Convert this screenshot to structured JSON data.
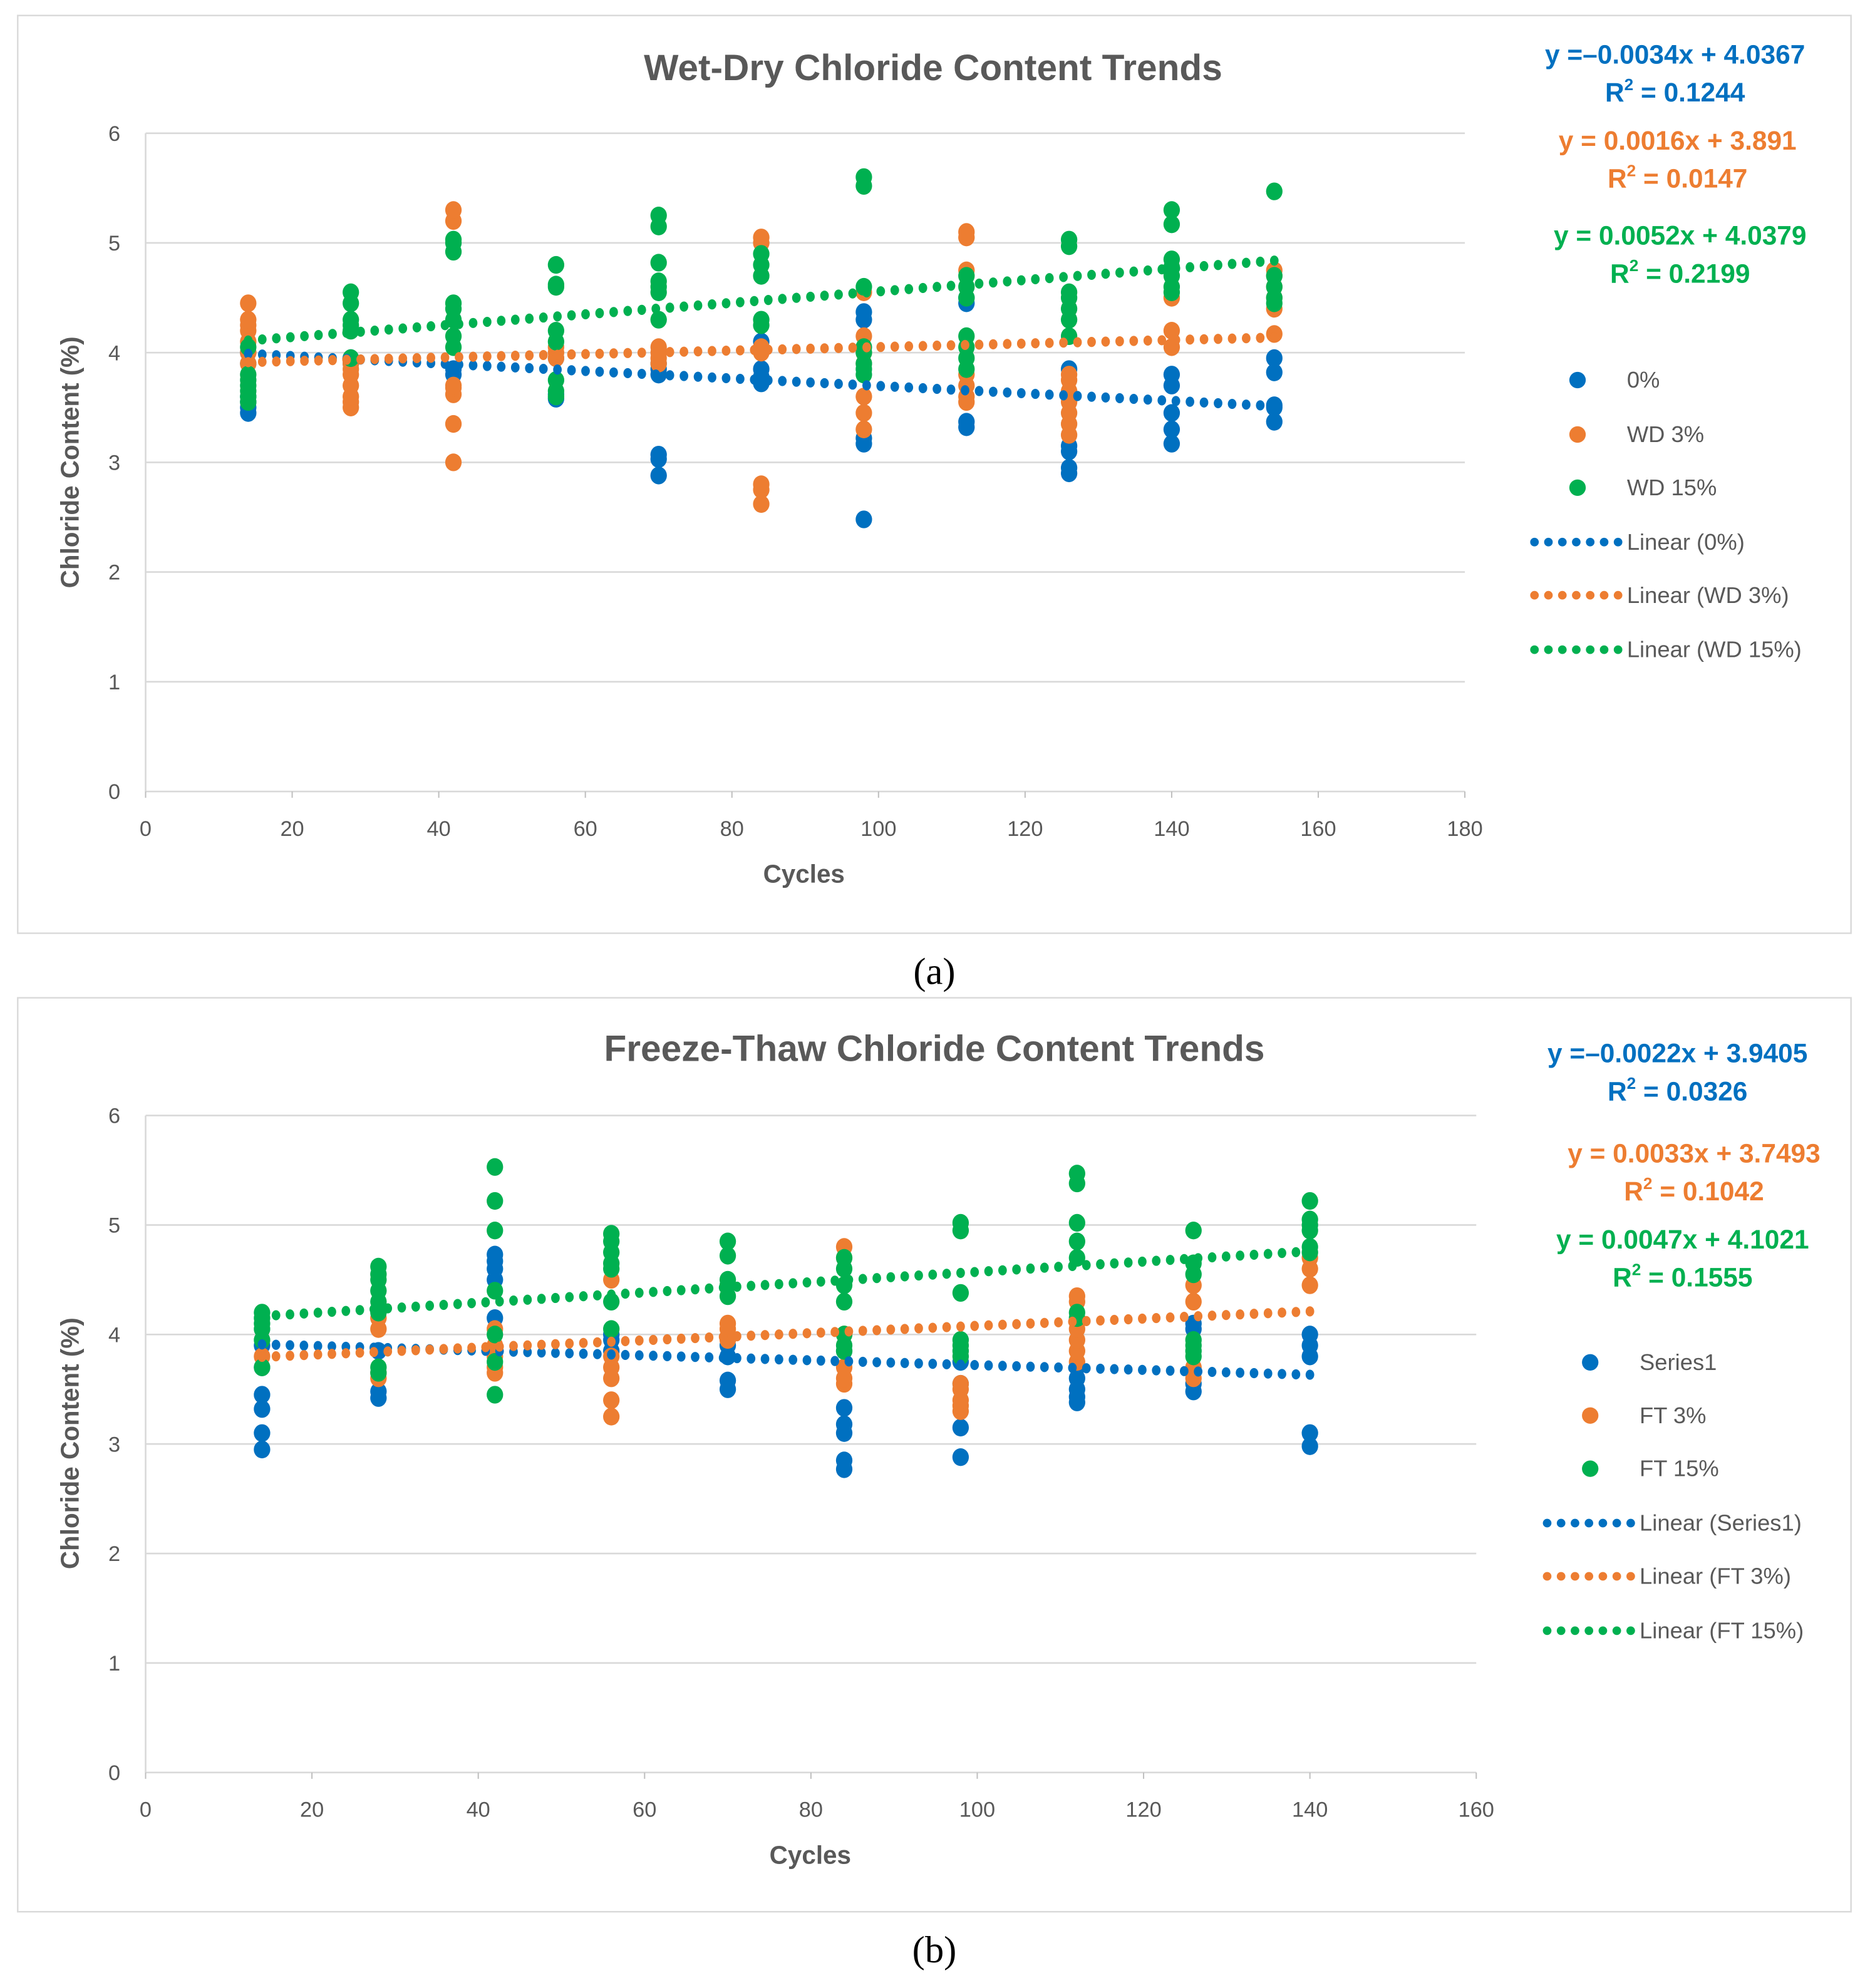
{
  "colors": {
    "blue": "#0070C0",
    "orange": "#ED7D31",
    "green": "#00B050"
  },
  "chart_data": [
    {
      "type": "scatter",
      "caption": "(a)",
      "title": "Wet-Dry Chloride Content Trends",
      "xlabel": "Cycles",
      "ylabel": "Chloride Content (%)",
      "xlim": [
        0,
        180
      ],
      "ylim": [
        0,
        6
      ],
      "xticks": [
        0,
        20,
        40,
        60,
        80,
        100,
        120,
        140,
        160,
        180
      ],
      "yticks": [
        0,
        1,
        2,
        3,
        4,
        5,
        6
      ],
      "grid": true,
      "legend_position": "right",
      "series": [
        {
          "name": "0%",
          "color": "#0070C0",
          "points": {
            "14": [
              3.45,
              3.5,
              3.55,
              3.6,
              3.9,
              4.0
            ],
            "28": [
              3.9,
              3.95
            ],
            "42": [
              3.8,
              3.85
            ],
            "56": [
              3.58,
              3.62,
              3.95
            ],
            "70": [
              2.88,
              3.03,
              3.07,
              3.8,
              3.85,
              3.9
            ],
            "84": [
              3.72,
              3.78,
              3.85,
              4.1
            ],
            "98": [
              2.48,
              3.17,
              3.22,
              4.3,
              4.37
            ],
            "112": [
              3.32,
              3.37,
              4.45,
              4.5
            ],
            "126": [
              2.9,
              2.95,
              3.1,
              3.15,
              3.85
            ],
            "140": [
              3.17,
              3.3,
              3.45,
              3.7,
              3.8
            ],
            "154": [
              3.37,
              3.5,
              3.52,
              3.82,
              3.95
            ]
          }
        },
        {
          "name": "WD 3%",
          "color": "#ED7D31",
          "points": {
            "14": [
              3.9,
              4.0,
              4.1,
              4.2,
              4.25,
              4.3,
              4.45
            ],
            "28": [
              3.5,
              3.55,
              3.6,
              3.7,
              3.8,
              3.85,
              3.9
            ],
            "42": [
              3.0,
              3.35,
              3.62,
              3.68,
              3.7,
              5.2,
              5.3
            ],
            "56": [
              3.95,
              4.0,
              4.05
            ],
            "70": [
              3.9,
              3.95,
              4.0,
              4.05
            ],
            "84": [
              2.62,
              2.75,
              2.8,
              4.0,
              4.05,
              5.0,
              5.05
            ],
            "98": [
              3.3,
              3.45,
              3.6,
              3.9,
              4.0,
              4.15,
              4.55
            ],
            "112": [
              3.55,
              3.6,
              3.7,
              3.8,
              4.75,
              5.05,
              5.1
            ],
            "126": [
              3.25,
              3.35,
              3.45,
              3.55,
              3.65,
              3.75,
              3.8
            ],
            "140": [
              4.05,
              4.2,
              4.5
            ],
            "154": [
              4.17,
              4.4,
              4.5,
              4.6,
              4.7,
              4.75
            ]
          }
        },
        {
          "name": "WD 15%",
          "color": "#00B050",
          "points": {
            "14": [
              3.55,
              3.6,
              3.65,
              3.7,
              3.75,
              3.8,
              4.05
            ],
            "28": [
              3.95,
              4.2,
              4.25,
              4.3,
              4.45,
              4.55
            ],
            "42": [
              4.05,
              4.15,
              4.3,
              4.4,
              4.45,
              4.92,
              5.0,
              5.03
            ],
            "56": [
              3.6,
              3.65,
              3.75,
              4.1,
              4.2,
              4.6,
              4.62,
              4.8
            ],
            "70": [
              4.3,
              4.55,
              4.6,
              4.65,
              4.82,
              5.15,
              5.25
            ],
            "84": [
              4.25,
              4.3,
              4.7,
              4.8,
              4.9
            ],
            "98": [
              3.8,
              3.85,
              3.9,
              4.0,
              4.05,
              4.6,
              5.52,
              5.6
            ],
            "112": [
              3.85,
              3.95,
              4.05,
              4.15,
              4.5,
              4.6,
              4.7
            ],
            "126": [
              4.15,
              4.3,
              4.4,
              4.5,
              4.55,
              4.97,
              5.03
            ],
            "140": [
              4.55,
              4.6,
              4.7,
              4.78,
              4.85,
              5.17,
              5.3
            ],
            "154": [
              4.45,
              4.5,
              4.6,
              4.7,
              5.47
            ]
          }
        }
      ],
      "trendlines": [
        {
          "name": "Linear (0%)",
          "color": "#0070C0",
          "slope": -0.0034,
          "intercept": 4.0367,
          "x_range": [
            14,
            154
          ],
          "equation": "y =–0.0034x + 4.0367",
          "r2_label": "R",
          "r2_value": " = 0.1244"
        },
        {
          "name": "Linear (WD 3%)",
          "color": "#ED7D31",
          "slope": 0.0016,
          "intercept": 3.891,
          "x_range": [
            14,
            154
          ],
          "equation": "y = 0.0016x + 3.891",
          "r2_label": "R",
          "r2_value": " = 0.0147"
        },
        {
          "name": "Linear (WD 15%)",
          "color": "#00B050",
          "slope": 0.0052,
          "intercept": 4.0379,
          "x_range": [
            14,
            154
          ],
          "equation": "y = 0.0052x + 4.0379",
          "r2_label": "R",
          "r2_value": " = 0.2199"
        }
      ]
    },
    {
      "type": "scatter",
      "caption": "(b)",
      "title": "Freeze-Thaw Chloride Content Trends",
      "xlabel": "Cycles",
      "ylabel": "Chloride Content (%)",
      "xlim": [
        0,
        160
      ],
      "ylim": [
        0,
        6
      ],
      "xticks": [
        0,
        20,
        40,
        60,
        80,
        100,
        120,
        140,
        160
      ],
      "yticks": [
        0,
        1,
        2,
        3,
        4,
        5,
        6
      ],
      "grid": true,
      "legend_position": "right",
      "series": [
        {
          "name": "Series1",
          "color": "#0070C0",
          "points": {
            "14": [
              2.95,
              3.1,
              3.32,
              3.45,
              3.7,
              3.9
            ],
            "28": [
              3.42,
              3.48,
              3.85
            ],
            "42": [
              3.85,
              4.15,
              4.5,
              4.6,
              4.67,
              4.73
            ],
            "56": [
              3.85,
              3.95,
              4.0
            ],
            "70": [
              3.5,
              3.58,
              3.8,
              3.9
            ],
            "84": [
              2.77,
              2.85,
              3.1,
              3.18,
              3.33,
              3.85
            ],
            "98": [
              2.88,
              3.15,
              3.55,
              3.75
            ],
            "112": [
              3.38,
              3.43,
              3.5,
              3.6,
              3.7
            ],
            "126": [
              3.48,
              3.55,
              4.05,
              4.1
            ],
            "140": [
              2.98,
              3.1,
              3.8,
              3.9,
              4.0
            ]
          }
        },
        {
          "name": "FT 3%",
          "color": "#ED7D31",
          "points": {
            "14": [
              3.8
            ],
            "28": [
              3.6,
              3.65,
              4.05,
              4.15
            ],
            "42": [
              3.65,
              3.7,
              3.8,
              3.9,
              4.05
            ],
            "56": [
              3.25,
              3.4,
              3.6,
              3.7,
              3.8,
              4.5
            ],
            "70": [
              3.95,
              4.05,
              4.1
            ],
            "84": [
              3.55,
              3.6,
              3.7,
              4.0,
              4.7,
              4.8
            ],
            "98": [
              3.3,
              3.35,
              3.4,
              3.5,
              3.55
            ],
            "112": [
              3.75,
              3.85,
              3.95,
              4.05,
              4.3,
              4.35
            ],
            "126": [
              3.6,
              3.7,
              4.3,
              4.45
            ],
            "140": [
              4.45,
              4.6,
              4.7
            ]
          }
        },
        {
          "name": "FT 15%",
          "color": "#00B050",
          "points": {
            "14": [
              3.7,
              3.95,
              4.05,
              4.1,
              4.15,
              4.2
            ],
            "28": [
              3.65,
              3.7,
              4.2,
              4.3,
              4.4,
              4.5,
              4.55,
              4.62
            ],
            "42": [
              3.45,
              3.75,
              4.0,
              4.4,
              4.95,
              5.22,
              5.53
            ],
            "56": [
              4.05,
              4.3,
              4.6,
              4.65,
              4.75,
              4.85,
              4.92
            ],
            "70": [
              4.35,
              4.45,
              4.5,
              4.72,
              4.85
            ],
            "84": [
              3.85,
              3.9,
              4.0,
              4.3,
              4.45,
              4.6,
              4.7
            ],
            "98": [
              3.8,
              3.85,
              3.9,
              3.95,
              4.38,
              4.95,
              5.02
            ],
            "112": [
              4.15,
              4.2,
              4.7,
              4.85,
              5.02,
              5.38,
              5.47
            ],
            "126": [
              3.8,
              3.85,
              3.9,
              3.95,
              4.55,
              4.65,
              4.95
            ],
            "140": [
              4.75,
              4.8,
              4.95,
              5.0,
              5.05,
              5.22
            ]
          }
        }
      ],
      "trendlines": [
        {
          "name": "Linear (Series1)",
          "color": "#0070C0",
          "slope": -0.0022,
          "intercept": 3.9405,
          "x_range": [
            14,
            140
          ],
          "equation": "y =–0.0022x + 3.9405",
          "r2_label": "R",
          "r2_value": " = 0.0326"
        },
        {
          "name": "Linear (FT 3%)",
          "color": "#ED7D31",
          "slope": 0.0033,
          "intercept": 3.7493,
          "x_range": [
            14,
            140
          ],
          "equation": "y = 0.0033x + 3.7493",
          "r2_label": "R",
          "r2_value": " = 0.1042"
        },
        {
          "name": "Linear (FT 15%)",
          "color": "#00B050",
          "slope": 0.0047,
          "intercept": 4.1021,
          "x_range": [
            14,
            140
          ],
          "equation": "y = 0.0047x + 4.1021",
          "r2_label": "R",
          "r2_value": " = 0.1555"
        }
      ]
    }
  ]
}
